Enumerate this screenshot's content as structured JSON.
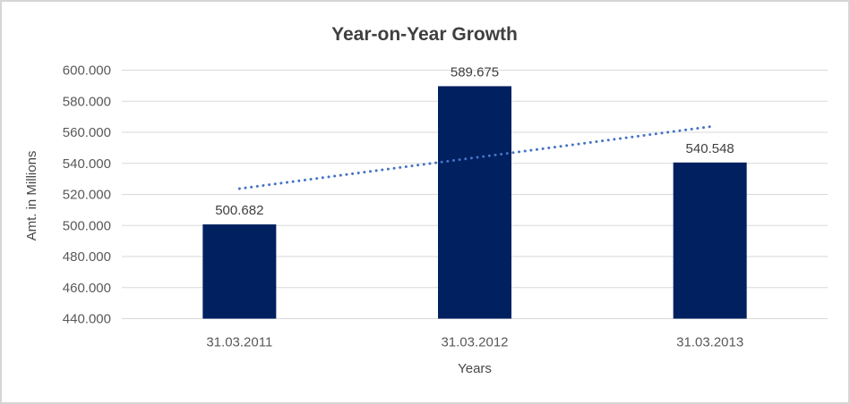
{
  "chart_data": {
    "type": "bar",
    "title": "Year-on-Year Growth",
    "xlabel": "Years",
    "ylabel": "Amt. in Millions",
    "categories": [
      "31.03.2011",
      "31.03.2012",
      "31.03.2013"
    ],
    "values": [
      500.682,
      589.675,
      540.548
    ],
    "data_labels": [
      "500.682",
      "589.675",
      "540.548"
    ],
    "ylim": [
      440,
      600
    ],
    "ytick_step": 20,
    "ytick_labels": [
      "440.000",
      "460.000",
      "480.000",
      "500.000",
      "520.000",
      "540.000",
      "560.000",
      "580.000",
      "600.000"
    ],
    "grid": true,
    "legend": "none",
    "trendline": {
      "type": "linear",
      "style": "dotted",
      "start_value": 523.7,
      "end_value": 563.6
    },
    "colors": {
      "bar": "#002060",
      "trendline": "#4472C4",
      "gridline": "#D9D9D9",
      "title_text": "#3F3F3F",
      "axis_text": "#595959",
      "label_text": "#404040",
      "frame_border": "#D6D6D6"
    }
  }
}
